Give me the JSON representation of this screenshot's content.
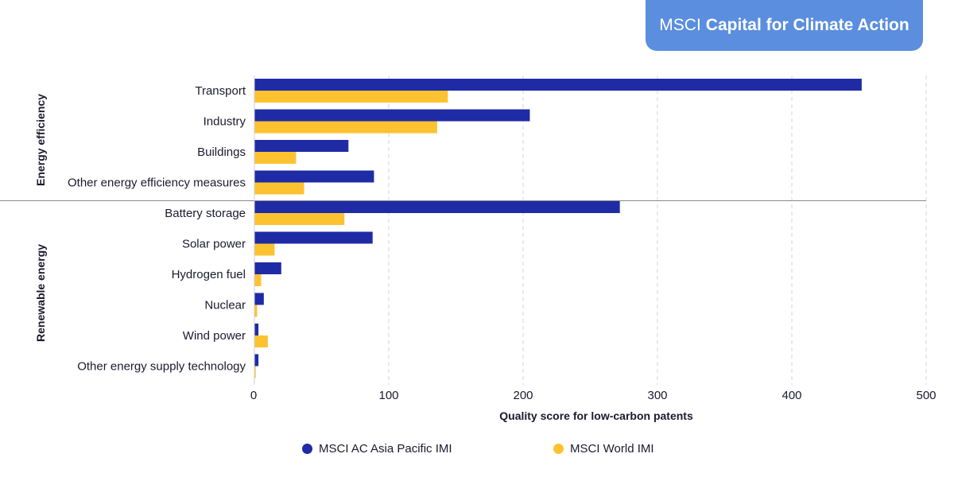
{
  "header": {
    "brand": "MSCI",
    "product": "Capital for Climate Action"
  },
  "colors": {
    "series_1": "#1f2ba5",
    "series_2": "#fdc230",
    "badge": "#5b8ede"
  },
  "chart_data": {
    "type": "bar",
    "orientation": "horizontal",
    "xlabel": "Quality score for low-carbon patents",
    "xlim": [
      0,
      500
    ],
    "xticks": [
      0,
      100,
      200,
      300,
      400,
      500
    ],
    "grid": "vertical dashed",
    "legend_position": "bottom",
    "groups": [
      {
        "name": "Energy efficiency",
        "categories": [
          "Transport",
          "Industry",
          "Buildings",
          "Other energy efficiency measures"
        ]
      },
      {
        "name": "Renewable energy",
        "categories": [
          "Battery storage",
          "Solar power",
          "Hydrogen fuel",
          "Nuclear",
          "Wind power",
          "Other energy supply technology"
        ]
      }
    ],
    "categories": [
      "Transport",
      "Industry",
      "Buildings",
      "Other energy efficiency measures",
      "Battery storage",
      "Solar power",
      "Hydrogen fuel",
      "Nuclear",
      "Wind power",
      "Other energy supply technology"
    ],
    "series": [
      {
        "name": "MSCI AC Asia Pacific IMI",
        "values": [
          452,
          205,
          70,
          89,
          272,
          88,
          20,
          7,
          3,
          3
        ]
      },
      {
        "name": "MSCI World IMI",
        "values": [
          144,
          136,
          31,
          37,
          67,
          15,
          5,
          2,
          10,
          1
        ]
      }
    ]
  }
}
